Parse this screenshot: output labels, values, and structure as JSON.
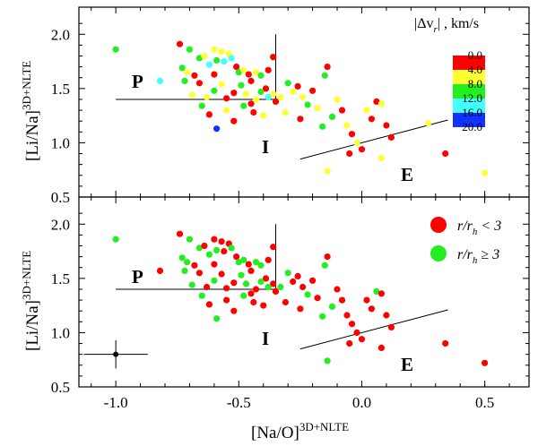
{
  "chart_data": [
    {
      "type": "scatter",
      "panel": "top",
      "xlim": [
        -1.15,
        0.68
      ],
      "ylim": [
        0.5,
        2.25
      ],
      "ylabel": "[Li/Na]",
      "ylabel_sup": "3D+NLTE",
      "y_ticks": [
        "0.5",
        "1.0",
        "1.5",
        "2.0"
      ],
      "y_tick_values": [
        0.5,
        1.0,
        1.5,
        2.0
      ],
      "grid": false,
      "legend_title": "|Δv",
      "legend_title_sub": "r",
      "legend_title_tail": "| , km/s",
      "legend_placement": "top-right",
      "colorbar": {
        "labels": [
          "0.0",
          "4.0",
          "8.0",
          "12.0",
          "16.0",
          "20.0"
        ],
        "colors": [
          "#ff0000",
          "#ffff33",
          "#22ee22",
          "#44ffff",
          "#1133ff"
        ]
      },
      "region_labels": {
        "P": "P",
        "I": "I",
        "E": "E"
      },
      "boundaries": [
        {
          "points": [
            [
              -1.0,
              1.4
            ],
            [
              -0.35,
              1.4
            ],
            [
              -0.35,
              2.0
            ]
          ]
        },
        {
          "points": [
            [
              -0.25,
              0.85
            ],
            [
              0.35,
              1.21
            ]
          ]
        }
      ],
      "points": [
        {
          "x": -1.0,
          "y": 1.86,
          "c": "#22ee22"
        },
        {
          "x": -0.74,
          "y": 1.91,
          "c": "#ff0000"
        },
        {
          "x": -0.73,
          "y": 1.69,
          "c": "#22ee22"
        },
        {
          "x": -0.71,
          "y": 1.65,
          "c": "#ffff33"
        },
        {
          "x": -0.7,
          "y": 1.86,
          "c": "#22ee22"
        },
        {
          "x": -0.68,
          "y": 1.62,
          "c": "#ff0000"
        },
        {
          "x": -0.66,
          "y": 1.78,
          "c": "#22ee22"
        },
        {
          "x": -0.64,
          "y": 1.8,
          "c": "#ffff33"
        },
        {
          "x": -0.62,
          "y": 1.72,
          "c": "#44ffff"
        },
        {
          "x": -0.6,
          "y": 1.86,
          "c": "#ffff33"
        },
        {
          "x": -0.59,
          "y": 1.76,
          "c": "#22ee22"
        },
        {
          "x": -0.57,
          "y": 1.84,
          "c": "#ffff33"
        },
        {
          "x": -0.56,
          "y": 1.75,
          "c": "#44ffff"
        },
        {
          "x": -0.54,
          "y": 1.82,
          "c": "#ffff33"
        },
        {
          "x": -0.53,
          "y": 1.78,
          "c": "#44ffff"
        },
        {
          "x": -0.51,
          "y": 1.7,
          "c": "#ff0000"
        },
        {
          "x": -0.5,
          "y": 1.65,
          "c": "#22ee22"
        },
        {
          "x": -0.48,
          "y": 1.67,
          "c": "#ffff33"
        },
        {
          "x": -0.46,
          "y": 1.63,
          "c": "#ff0000"
        },
        {
          "x": -0.45,
          "y": 1.57,
          "c": "#ff0000"
        },
        {
          "x": -0.43,
          "y": 1.65,
          "c": "#ffff33"
        },
        {
          "x": -0.41,
          "y": 1.62,
          "c": "#22ee22"
        },
        {
          "x": -0.39,
          "y": 1.5,
          "c": "#ff0000"
        },
        {
          "x": -0.38,
          "y": 1.67,
          "c": "#ff0000"
        },
        {
          "x": -0.36,
          "y": 1.79,
          "c": "#ff0000"
        },
        {
          "x": -0.36,
          "y": 1.45,
          "c": "#ffff33"
        },
        {
          "x": -0.38,
          "y": 1.42,
          "c": "#44ffff"
        },
        {
          "x": -0.41,
          "y": 1.47,
          "c": "#22ee22"
        },
        {
          "x": -0.43,
          "y": 1.4,
          "c": "#ffff33"
        },
        {
          "x": -0.45,
          "y": 1.36,
          "c": "#ff0000"
        },
        {
          "x": -0.47,
          "y": 1.45,
          "c": "#ffff33"
        },
        {
          "x": -0.49,
          "y": 1.53,
          "c": "#22ee22"
        },
        {
          "x": -0.52,
          "y": 1.46,
          "c": "#ff0000"
        },
        {
          "x": -0.55,
          "y": 1.41,
          "c": "#ff0000"
        },
        {
          "x": -0.57,
          "y": 1.54,
          "c": "#ffff33"
        },
        {
          "x": -0.6,
          "y": 1.48,
          "c": "#22ee22"
        },
        {
          "x": -0.63,
          "y": 1.42,
          "c": "#ffff33"
        },
        {
          "x": -0.66,
          "y": 1.55,
          "c": "#ff0000"
        },
        {
          "x": -0.69,
          "y": 1.44,
          "c": "#ffff33"
        },
        {
          "x": -0.72,
          "y": 1.57,
          "c": "#22ee22"
        },
        {
          "x": -0.82,
          "y": 1.57,
          "c": "#44ffff"
        },
        {
          "x": -0.65,
          "y": 1.34,
          "c": "#22ee22"
        },
        {
          "x": -0.62,
          "y": 1.26,
          "c": "#ff0000"
        },
        {
          "x": -0.59,
          "y": 1.13,
          "c": "#1133ff"
        },
        {
          "x": -0.55,
          "y": 1.3,
          "c": "#ffff33"
        },
        {
          "x": -0.52,
          "y": 1.2,
          "c": "#ff0000"
        },
        {
          "x": -0.48,
          "y": 1.34,
          "c": "#22ee22"
        },
        {
          "x": -0.44,
          "y": 1.28,
          "c": "#ff0000"
        },
        {
          "x": -0.4,
          "y": 1.25,
          "c": "#ffff33"
        },
        {
          "x": -0.35,
          "y": 1.38,
          "c": "#ff0000"
        },
        {
          "x": -0.33,
          "y": 1.42,
          "c": "#ffff33"
        },
        {
          "x": -0.3,
          "y": 1.55,
          "c": "#22ee22"
        },
        {
          "x": -0.28,
          "y": 1.47,
          "c": "#ffff33"
        },
        {
          "x": -0.26,
          "y": 1.52,
          "c": "#ff0000"
        },
        {
          "x": -0.24,
          "y": 1.42,
          "c": "#ffff33"
        },
        {
          "x": -0.22,
          "y": 1.35,
          "c": "#22ee22"
        },
        {
          "x": -0.2,
          "y": 1.48,
          "c": "#ff0000"
        },
        {
          "x": -0.18,
          "y": 1.32,
          "c": "#ffff33"
        },
        {
          "x": -0.15,
          "y": 1.62,
          "c": "#22ee22"
        },
        {
          "x": -0.14,
          "y": 1.7,
          "c": "#ff0000"
        },
        {
          "x": -0.12,
          "y": 1.24,
          "c": "#22ee22"
        },
        {
          "x": -0.1,
          "y": 1.4,
          "c": "#ffff33"
        },
        {
          "x": -0.08,
          "y": 1.3,
          "c": "#ff0000"
        },
        {
          "x": -0.06,
          "y": 1.16,
          "c": "#ffff33"
        },
        {
          "x": -0.04,
          "y": 1.08,
          "c": "#ff0000"
        },
        {
          "x": -0.02,
          "y": 1.0,
          "c": "#ffff33"
        },
        {
          "x": 0.0,
          "y": 0.94,
          "c": "#ff0000"
        },
        {
          "x": 0.02,
          "y": 1.3,
          "c": "#ffff33"
        },
        {
          "x": 0.04,
          "y": 1.22,
          "c": "#ff0000"
        },
        {
          "x": 0.06,
          "y": 1.38,
          "c": "#ff0000"
        },
        {
          "x": 0.08,
          "y": 1.36,
          "c": "#ffff33"
        },
        {
          "x": 0.1,
          "y": 1.16,
          "c": "#ff0000"
        },
        {
          "x": 0.12,
          "y": 1.05,
          "c": "#ff0000"
        },
        {
          "x": -0.31,
          "y": 1.28,
          "c": "#ffff33"
        },
        {
          "x": -0.16,
          "y": 1.15,
          "c": "#22ee22"
        },
        {
          "x": -0.25,
          "y": 1.22,
          "c": "#ff0000"
        },
        {
          "x": -0.05,
          "y": 0.9,
          "c": "#ff0000"
        },
        {
          "x": -0.14,
          "y": 0.74,
          "c": "#ffff33"
        },
        {
          "x": 0.08,
          "y": 0.86,
          "c": "#ffff33"
        },
        {
          "x": -0.6,
          "y": 1.63,
          "c": "#ff0000"
        },
        {
          "x": 0.27,
          "y": 1.18,
          "c": "#ffff33"
        },
        {
          "x": 0.34,
          "y": 0.9,
          "c": "#ff0000"
        },
        {
          "x": 0.5,
          "y": 0.72,
          "c": "#ffff33"
        }
      ]
    },
    {
      "type": "scatter",
      "panel": "bottom",
      "xlim": [
        -1.15,
        0.68
      ],
      "ylim": [
        0.5,
        2.25
      ],
      "xlabel": "[Na/O]",
      "xlabel_sup": "3D+NLTE",
      "ylabel": "[Li/Na]",
      "ylabel_sup": "3D+NLTE",
      "x_ticks": [
        "-1.0",
        "-0.5",
        "0.0",
        "0.5"
      ],
      "x_tick_values": [
        -1.0,
        -0.5,
        0.0,
        0.5
      ],
      "y_ticks": [
        "0.5",
        "1.0",
        "1.5",
        "2.0"
      ],
      "y_tick_values": [
        0.5,
        1.0,
        1.5,
        2.0
      ],
      "grid": false,
      "legend_placement": "top-right",
      "legend": [
        {
          "pre": "r/r",
          "sub": "h",
          "post": " < 3",
          "color": "#ff0000"
        },
        {
          "pre": "r/r",
          "sub": "h",
          "post": " ≥ 3",
          "color": "#22ee22"
        }
      ],
      "region_labels": {
        "P": "P",
        "I": "I",
        "E": "E"
      },
      "boundaries": [
        {
          "points": [
            [
              -1.0,
              1.4
            ],
            [
              -0.35,
              1.4
            ],
            [
              -0.35,
              2.0
            ]
          ]
        },
        {
          "points": [
            [
              -0.25,
              0.85
            ],
            [
              0.35,
              1.21
            ]
          ]
        }
      ],
      "error_bar": {
        "x": -1.0,
        "y": 0.8,
        "xerr": 0.13,
        "yerr": 0.13
      },
      "points": [
        {
          "x": -1.0,
          "y": 1.86,
          "c": "#22ee22"
        },
        {
          "x": -0.74,
          "y": 1.91,
          "c": "#ff0000"
        },
        {
          "x": -0.73,
          "y": 1.69,
          "c": "#22ee22"
        },
        {
          "x": -0.71,
          "y": 1.65,
          "c": "#22ee22"
        },
        {
          "x": -0.7,
          "y": 1.86,
          "c": "#22ee22"
        },
        {
          "x": -0.68,
          "y": 1.62,
          "c": "#ff0000"
        },
        {
          "x": -0.66,
          "y": 1.78,
          "c": "#22ee22"
        },
        {
          "x": -0.64,
          "y": 1.8,
          "c": "#ff0000"
        },
        {
          "x": -0.62,
          "y": 1.72,
          "c": "#22ee22"
        },
        {
          "x": -0.6,
          "y": 1.86,
          "c": "#ff0000"
        },
        {
          "x": -0.59,
          "y": 1.76,
          "c": "#22ee22"
        },
        {
          "x": -0.57,
          "y": 1.84,
          "c": "#ff0000"
        },
        {
          "x": -0.56,
          "y": 1.75,
          "c": "#ff0000"
        },
        {
          "x": -0.54,
          "y": 1.82,
          "c": "#ff0000"
        },
        {
          "x": -0.53,
          "y": 1.78,
          "c": "#22ee22"
        },
        {
          "x": -0.51,
          "y": 1.7,
          "c": "#ff0000"
        },
        {
          "x": -0.5,
          "y": 1.65,
          "c": "#22ee22"
        },
        {
          "x": -0.48,
          "y": 1.67,
          "c": "#22ee22"
        },
        {
          "x": -0.46,
          "y": 1.63,
          "c": "#ff0000"
        },
        {
          "x": -0.45,
          "y": 1.57,
          "c": "#ff0000"
        },
        {
          "x": -0.43,
          "y": 1.65,
          "c": "#22ee22"
        },
        {
          "x": -0.41,
          "y": 1.62,
          "c": "#22ee22"
        },
        {
          "x": -0.39,
          "y": 1.5,
          "c": "#ff0000"
        },
        {
          "x": -0.38,
          "y": 1.67,
          "c": "#ff0000"
        },
        {
          "x": -0.36,
          "y": 1.79,
          "c": "#ff0000"
        },
        {
          "x": -0.36,
          "y": 1.45,
          "c": "#ff0000"
        },
        {
          "x": -0.38,
          "y": 1.42,
          "c": "#22ee22"
        },
        {
          "x": -0.41,
          "y": 1.47,
          "c": "#22ee22"
        },
        {
          "x": -0.43,
          "y": 1.4,
          "c": "#ff0000"
        },
        {
          "x": -0.45,
          "y": 1.36,
          "c": "#ff0000"
        },
        {
          "x": -0.47,
          "y": 1.45,
          "c": "#22ee22"
        },
        {
          "x": -0.49,
          "y": 1.53,
          "c": "#22ee22"
        },
        {
          "x": -0.52,
          "y": 1.46,
          "c": "#ff0000"
        },
        {
          "x": -0.55,
          "y": 1.41,
          "c": "#ff0000"
        },
        {
          "x": -0.57,
          "y": 1.54,
          "c": "#ff0000"
        },
        {
          "x": -0.6,
          "y": 1.48,
          "c": "#22ee22"
        },
        {
          "x": -0.63,
          "y": 1.42,
          "c": "#ff0000"
        },
        {
          "x": -0.66,
          "y": 1.55,
          "c": "#ff0000"
        },
        {
          "x": -0.69,
          "y": 1.44,
          "c": "#22ee22"
        },
        {
          "x": -0.72,
          "y": 1.57,
          "c": "#22ee22"
        },
        {
          "x": -0.82,
          "y": 1.57,
          "c": "#ff0000"
        },
        {
          "x": -0.65,
          "y": 1.34,
          "c": "#22ee22"
        },
        {
          "x": -0.62,
          "y": 1.26,
          "c": "#ff0000"
        },
        {
          "x": -0.59,
          "y": 1.13,
          "c": "#22ee22"
        },
        {
          "x": -0.55,
          "y": 1.3,
          "c": "#ff0000"
        },
        {
          "x": -0.52,
          "y": 1.2,
          "c": "#ff0000"
        },
        {
          "x": -0.48,
          "y": 1.34,
          "c": "#22ee22"
        },
        {
          "x": -0.44,
          "y": 1.28,
          "c": "#ff0000"
        },
        {
          "x": -0.4,
          "y": 1.25,
          "c": "#ff0000"
        },
        {
          "x": -0.35,
          "y": 1.38,
          "c": "#ff0000"
        },
        {
          "x": -0.33,
          "y": 1.42,
          "c": "#22ee22"
        },
        {
          "x": -0.3,
          "y": 1.55,
          "c": "#22ee22"
        },
        {
          "x": -0.28,
          "y": 1.47,
          "c": "#ff0000"
        },
        {
          "x": -0.26,
          "y": 1.52,
          "c": "#ff0000"
        },
        {
          "x": -0.24,
          "y": 1.42,
          "c": "#ff0000"
        },
        {
          "x": -0.22,
          "y": 1.35,
          "c": "#22ee22"
        },
        {
          "x": -0.2,
          "y": 1.48,
          "c": "#ff0000"
        },
        {
          "x": -0.18,
          "y": 1.32,
          "c": "#ff0000"
        },
        {
          "x": -0.15,
          "y": 1.62,
          "c": "#22ee22"
        },
        {
          "x": -0.14,
          "y": 1.7,
          "c": "#ff0000"
        },
        {
          "x": -0.12,
          "y": 1.24,
          "c": "#22ee22"
        },
        {
          "x": -0.1,
          "y": 1.4,
          "c": "#ff0000"
        },
        {
          "x": -0.08,
          "y": 1.3,
          "c": "#ff0000"
        },
        {
          "x": -0.06,
          "y": 1.16,
          "c": "#ff0000"
        },
        {
          "x": -0.04,
          "y": 1.08,
          "c": "#ff0000"
        },
        {
          "x": -0.02,
          "y": 1.0,
          "c": "#ff0000"
        },
        {
          "x": 0.0,
          "y": 0.94,
          "c": "#ff0000"
        },
        {
          "x": 0.02,
          "y": 1.3,
          "c": "#ff0000"
        },
        {
          "x": 0.04,
          "y": 1.22,
          "c": "#ff0000"
        },
        {
          "x": 0.06,
          "y": 1.38,
          "c": "#22ee22"
        },
        {
          "x": 0.08,
          "y": 1.36,
          "c": "#ff0000"
        },
        {
          "x": 0.1,
          "y": 1.16,
          "c": "#ff0000"
        },
        {
          "x": 0.12,
          "y": 1.05,
          "c": "#ff0000"
        },
        {
          "x": -0.31,
          "y": 1.28,
          "c": "#ff0000"
        },
        {
          "x": -0.16,
          "y": 1.15,
          "c": "#22ee22"
        },
        {
          "x": -0.25,
          "y": 1.22,
          "c": "#ff0000"
        },
        {
          "x": -0.05,
          "y": 0.9,
          "c": "#ff0000"
        },
        {
          "x": -0.14,
          "y": 0.74,
          "c": "#22ee22"
        },
        {
          "x": 0.08,
          "y": 0.86,
          "c": "#ff0000"
        },
        {
          "x": -0.6,
          "y": 1.63,
          "c": "#ff0000"
        },
        {
          "x": 0.34,
          "y": 0.9,
          "c": "#ff0000"
        },
        {
          "x": 0.5,
          "y": 0.72,
          "c": "#ff0000"
        }
      ]
    }
  ]
}
